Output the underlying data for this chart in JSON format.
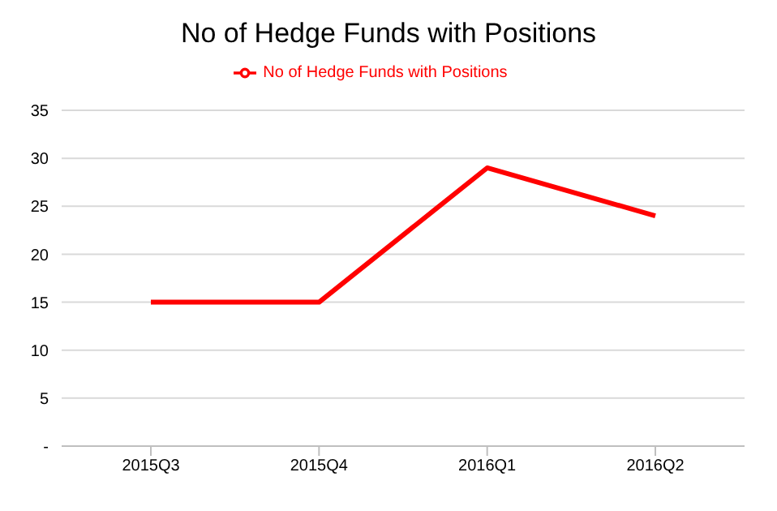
{
  "chart_data": {
    "type": "line",
    "title": "No of Hedge Funds with Positions",
    "categories": [
      "2015Q3",
      "2015Q4",
      "2016Q1",
      "2016Q2"
    ],
    "series": [
      {
        "name": "No of Hedge Funds with Positions",
        "color": "#ff0000",
        "values": [
          15,
          15,
          29,
          24
        ]
      }
    ],
    "ylim": [
      0,
      35
    ],
    "yticks": [
      {
        "value": 0,
        "label": "-"
      },
      5,
      10,
      15,
      20,
      25,
      30,
      35
    ],
    "grid": "y",
    "legend": "top",
    "marker": "none",
    "line_style": "solid"
  }
}
